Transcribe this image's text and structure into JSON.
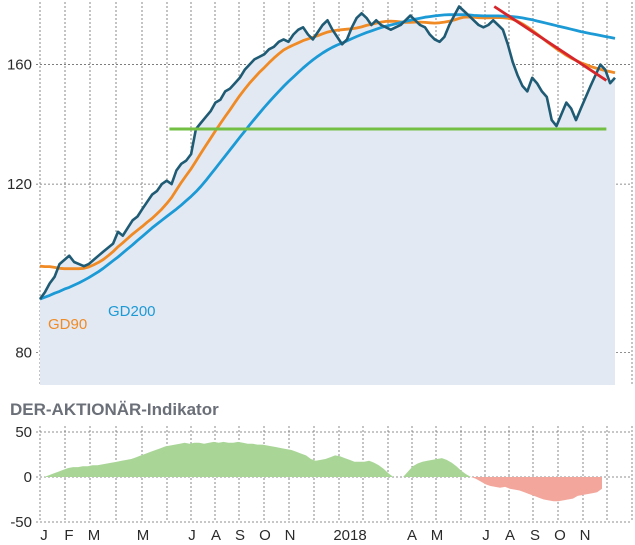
{
  "chart_data": [
    {
      "type": "line",
      "title": "",
      "xlabel": "",
      "ylabel": "",
      "ylim": [
        74,
        186
      ],
      "y_scale": "log",
      "yticks": [
        80,
        120,
        160
      ],
      "grid": "vertical",
      "x_labels": [
        "J",
        "F",
        "M",
        "M",
        "J",
        "A",
        "S",
        "O",
        "N",
        "2018",
        "A",
        "M",
        "J",
        "A",
        "S",
        "O",
        "N"
      ],
      "price_fill": "#e3e9f3",
      "series": [
        {
          "name": "",
          "role": "price",
          "color": "#1f5b74",
          "values": [
            91,
            92.5,
            94.5,
            96,
            99,
            100,
            101,
            99.5,
            99,
            98.5,
            99,
            100,
            101,
            102,
            103,
            104,
            107,
            106,
            108,
            110,
            111,
            113,
            115,
            117,
            118,
            120,
            121,
            120,
            124,
            126,
            127,
            129,
            137,
            139,
            141,
            143,
            146,
            147,
            150,
            151,
            153,
            155,
            158,
            160,
            162,
            163,
            164,
            166,
            167,
            169,
            170,
            169,
            172,
            174,
            175,
            172,
            170,
            173,
            176,
            178,
            174,
            171,
            168,
            170,
            175,
            179,
            181,
            179,
            176,
            178,
            176,
            175,
            174,
            175,
            176,
            178,
            180,
            178,
            176,
            175,
            172,
            170,
            169,
            171,
            176,
            180,
            184,
            182,
            180,
            178,
            176,
            175,
            176,
            178,
            176,
            174,
            168,
            161,
            156,
            152,
            150,
            155,
            153,
            150,
            148,
            140,
            138,
            142,
            146,
            144,
            140,
            144,
            148,
            152,
            156,
            160,
            158,
            153,
            155
          ]
        },
        {
          "name": "GD90",
          "role": "moving-average",
          "color": "#f08a24",
          "values": [
            98.5,
            98.4,
            98.4,
            98.2,
            98,
            97.9,
            97.9,
            97.9,
            97.9,
            98,
            98.3,
            98.8,
            99.4,
            100.1,
            101,
            102,
            103.2,
            104.2,
            105.3,
            106.4,
            107.4,
            108.4,
            109.5,
            110.5,
            111.7,
            113,
            114.5,
            116.2,
            118.3,
            120.5,
            122.5,
            124.5,
            126.8,
            129.2,
            131.6,
            134,
            136.4,
            138.8,
            141.2,
            143.5,
            146,
            148.5,
            150.8,
            153,
            155,
            157,
            158.8,
            160.7,
            162.5,
            164.2,
            165.7,
            166.8,
            167.7,
            168.6,
            169.5,
            170.2,
            170.9,
            171.5,
            172.3,
            173,
            173.5,
            173.8,
            174,
            174.2,
            174.4,
            174.7,
            175.2,
            175.8,
            176.3,
            176.8,
            177.2,
            177.5,
            177.6,
            177.5,
            177.3,
            177.1,
            177.1,
            177.2,
            177.2,
            177.1,
            176.9,
            176.8,
            176.9,
            177.2,
            177.6,
            178.1,
            178.8,
            179.3,
            179.4,
            179.3,
            179.1,
            179,
            179,
            179.1,
            179.2,
            179.1,
            178.9,
            178.4,
            177.6,
            176.5,
            175.2,
            173.7,
            172.2,
            170.7,
            169.1,
            167.6,
            166.2,
            164.9,
            163.6,
            162.5,
            161.6,
            160.7,
            160,
            159.3,
            158.7,
            158.2,
            157.7,
            157.3,
            156.9
          ]
        },
        {
          "name": "GD200",
          "role": "moving-average",
          "color": "#1c9ad6",
          "values": [
            91,
            91.4,
            91.8,
            92.3,
            92.7,
            93.2,
            93.6,
            94.1,
            94.6,
            95.2,
            95.8,
            96.5,
            97.2,
            98,
            98.9,
            99.8,
            100.7,
            101.7,
            102.7,
            103.7,
            104.8,
            105.8,
            106.9,
            108,
            109,
            110,
            111,
            112,
            113,
            114.1,
            115.3,
            116.5,
            117.8,
            119.3,
            121,
            122.8,
            124.6,
            126.5,
            128.4,
            130.3,
            132.3,
            134.3,
            136.3,
            138.3,
            140.3,
            142.3,
            144.3,
            146.2,
            148.1,
            150,
            151.8,
            153.6,
            155.3,
            157,
            158.7,
            160.3,
            161.8,
            163.2,
            164.5,
            165.7,
            166.8,
            167.7,
            168.5,
            169.4,
            170.3,
            171.2,
            172,
            172.8,
            173.5,
            174.2,
            174.9,
            175.5,
            176,
            176.5,
            177,
            177.5,
            178,
            178.5,
            178.9,
            179.3,
            179.6,
            179.9,
            180.1,
            180.3,
            180.4,
            180.4,
            180.4,
            180.4,
            180.3,
            180.1,
            180,
            179.9,
            179.9,
            179.9,
            179.9,
            179.8,
            179.7,
            179.6,
            179.3,
            179,
            178.6,
            178.2,
            177.7,
            177.2,
            176.7,
            176.2,
            175.7,
            175.2,
            174.7,
            174.2,
            173.7,
            173.2,
            172.8,
            172.4,
            172,
            171.6,
            171.2,
            170.8,
            170.4
          ]
        }
      ],
      "annotations": [
        {
          "type": "trendline",
          "color": "#d7262b",
          "from": [
            0.79,
            184
          ],
          "to": [
            0.985,
            154
          ]
        },
        {
          "type": "support-line",
          "color": "#72bf44",
          "value": 137,
          "from_x": 0.225,
          "to_x": 0.985
        }
      ]
    },
    {
      "type": "area",
      "title": "DER-AKTIONÄR-Indikator",
      "xlabel": "",
      "ylabel": "",
      "ylim": [
        -50,
        50
      ],
      "yticks": [
        50,
        0,
        -50
      ],
      "grid": "vertical",
      "x_labels": [
        "J",
        "F",
        "M",
        "M",
        "J",
        "A",
        "S",
        "O",
        "N",
        "2018",
        "A",
        "M",
        "J",
        "A",
        "S",
        "O",
        "N"
      ],
      "positive_color": "#a9d697",
      "negative_color": "#f3a79c",
      "values": [
        0,
        2,
        4,
        6,
        8,
        10,
        11,
        11,
        12,
        12,
        13,
        13,
        14,
        15,
        16,
        17,
        18,
        19,
        20,
        22,
        24,
        26,
        28,
        30,
        32,
        34,
        35,
        36,
        37,
        38,
        37,
        38,
        38,
        37,
        38,
        39,
        38,
        39,
        38,
        38,
        39,
        38,
        37,
        37,
        36,
        36,
        35,
        34,
        33,
        32,
        31,
        30,
        28,
        26,
        24,
        20,
        18,
        19,
        20,
        22,
        24,
        23,
        21,
        19,
        17,
        17,
        17,
        18,
        16,
        13,
        9,
        4,
        0,
        0,
        0,
        6,
        12,
        15,
        17,
        18,
        19,
        20,
        21,
        19,
        16,
        12,
        7,
        3,
        0,
        -2,
        -5,
        -8,
        -10,
        -11,
        -12,
        -11,
        -13,
        -14,
        -15,
        -17,
        -19,
        -21,
        -23,
        -25,
        -26,
        -27,
        -27,
        -26,
        -25,
        -24,
        -21,
        -20,
        -19,
        -18,
        -17,
        -13
      ]
    }
  ]
}
